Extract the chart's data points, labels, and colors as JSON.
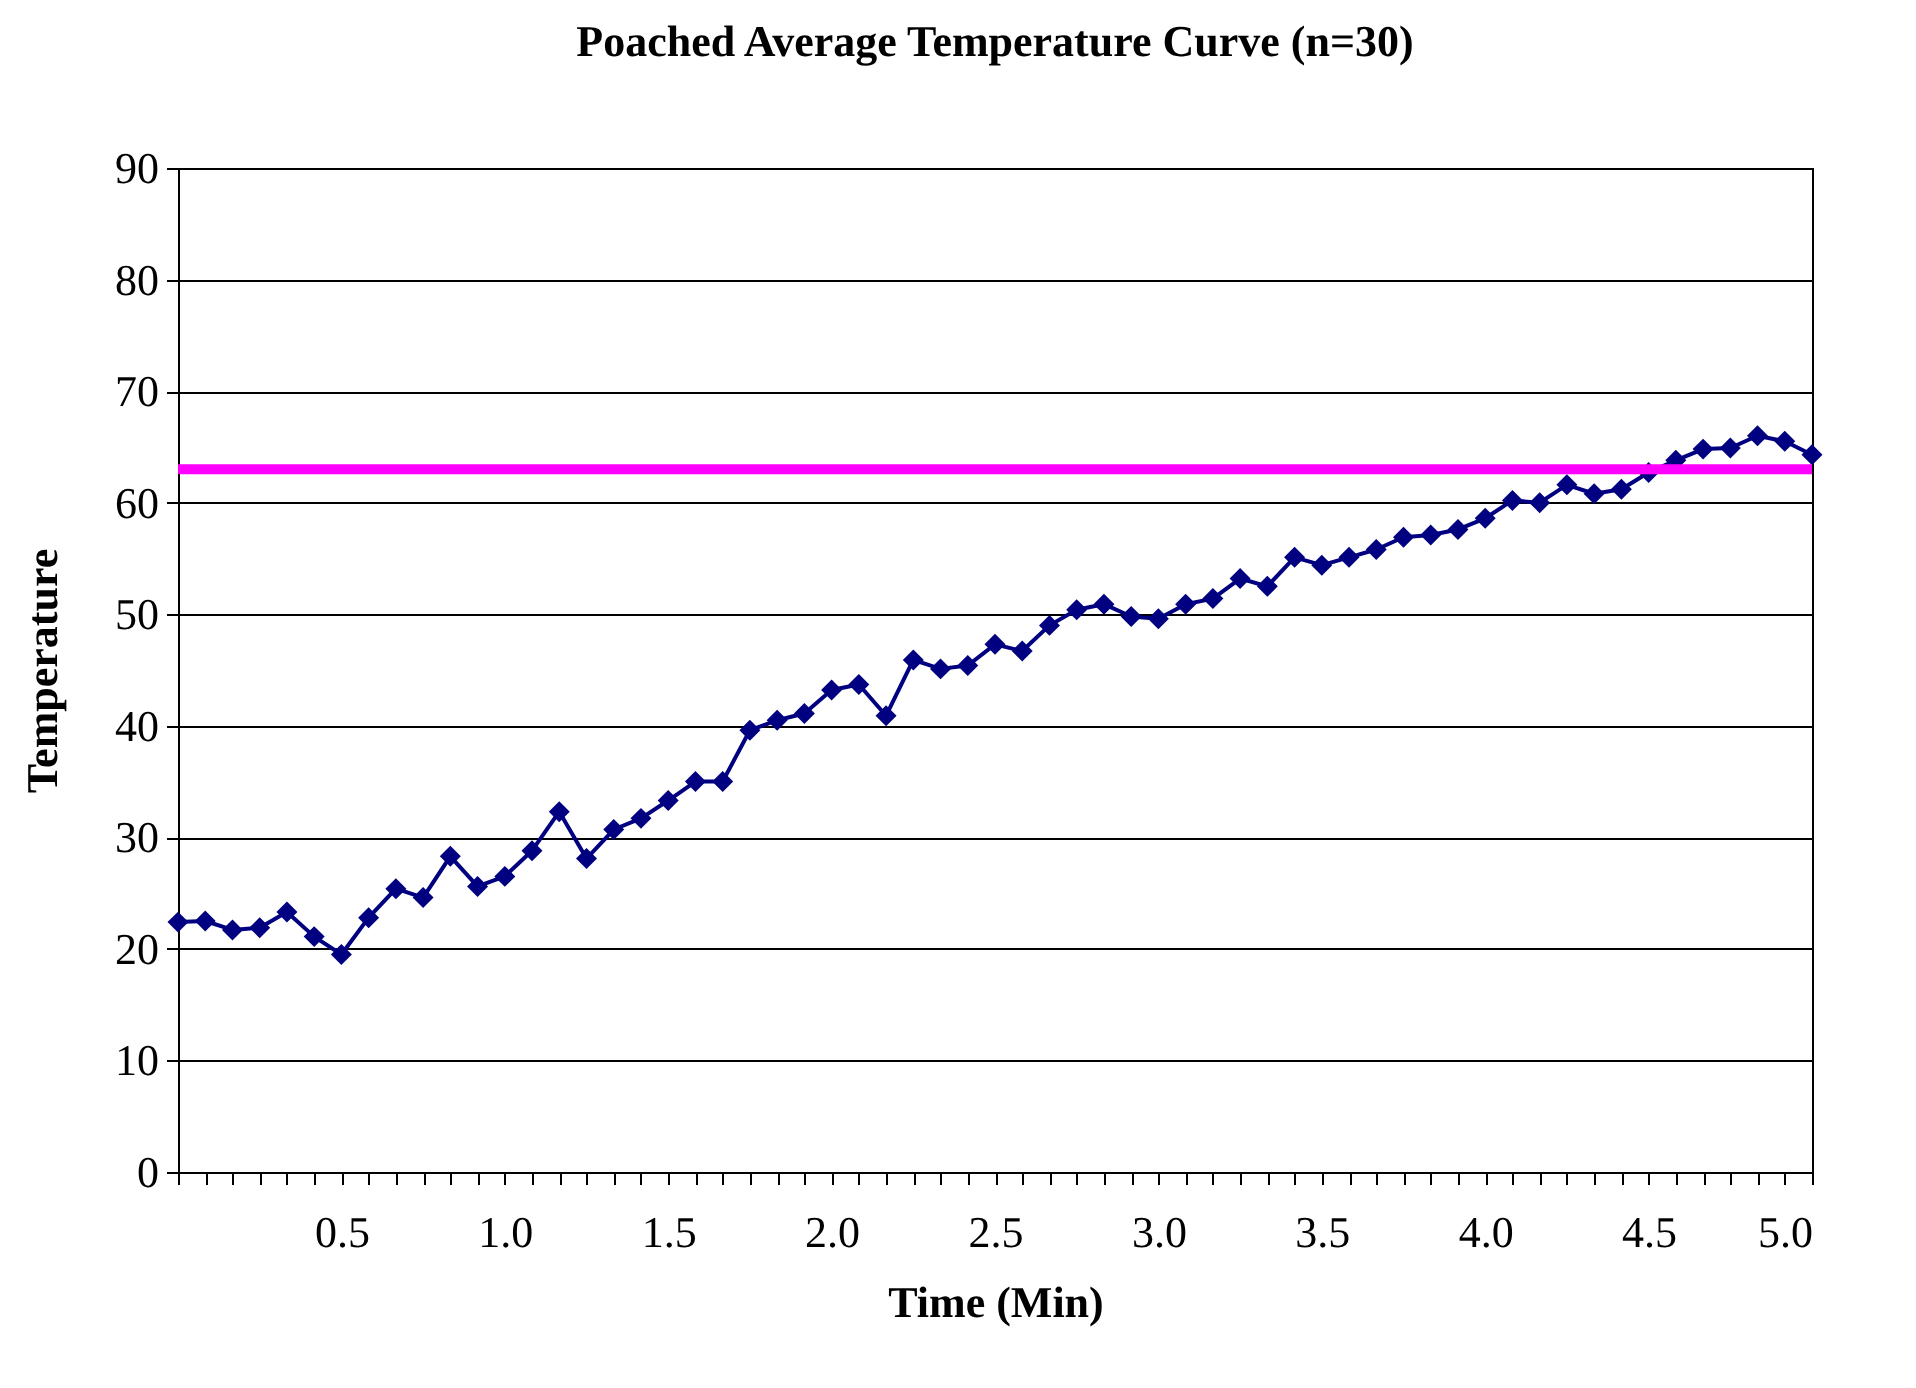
{
  "chart_data": {
    "type": "line",
    "title": "Poached Average Temperature Curve (n=30)",
    "xlabel": "Time (Min)",
    "ylabel": "Temperature",
    "x": [
      0,
      0.0833,
      0.1667,
      0.25,
      0.3333,
      0.4167,
      0.5,
      0.5833,
      0.6667,
      0.75,
      0.8333,
      0.9167,
      1,
      1.0833,
      1.1667,
      1.25,
      1.3333,
      1.4167,
      1.5,
      1.5833,
      1.6667,
      1.75,
      1.8333,
      1.9167,
      2,
      2.0833,
      2.1667,
      2.25,
      2.3333,
      2.4167,
      2.5,
      2.5833,
      2.6667,
      2.75,
      2.8333,
      2.9167,
      3,
      3.0833,
      3.1667,
      3.25,
      3.3333,
      3.4167,
      3.5,
      3.5833,
      3.6667,
      3.75,
      3.8333,
      3.9167,
      4,
      4.0833,
      4.1667,
      4.25,
      4.3333,
      4.4167,
      4.5,
      4.5833,
      4.6667,
      4.75,
      4.8333,
      4.9167,
      5
    ],
    "series": [
      {
        "color": "#000080",
        "values": [
          22.4,
          22.5,
          21.7,
          21.9,
          23.3,
          21.1,
          19.5,
          22.8,
          25.4,
          24.6,
          28.3,
          25.6,
          26.5,
          28.8,
          32.3,
          28.1,
          30.7,
          31.7,
          33.3,
          35.0,
          35.0,
          39.6,
          40.5,
          41.1,
          43.2,
          43.7,
          40.9,
          45.9,
          45.1,
          45.4,
          47.3,
          46.7,
          49.0,
          50.4,
          50.9,
          49.8,
          49.6,
          50.9,
          51.4,
          53.2,
          52.5,
          55.1,
          54.4,
          55.1,
          55.8,
          56.9,
          57.1,
          57.6,
          58.6,
          60.2,
          60.0,
          61.6,
          60.8,
          61.2,
          62.7,
          63.8,
          64.8,
          64.9,
          66.0,
          65.5,
          64.3
        ]
      }
    ],
    "xlim": [
      0,
      5
    ],
    "xticks": [
      {
        "value": 0,
        "label": null
      },
      {
        "value": 0.0833,
        "label": null
      },
      {
        "value": 0.1667,
        "label": null
      },
      {
        "value": 0.25,
        "label": null
      },
      {
        "value": 0.3333,
        "label": null
      },
      {
        "value": 0.4167,
        "label": null
      },
      0.5,
      {
        "value": 0.5833,
        "label": null
      },
      {
        "value": 0.6667,
        "label": null
      },
      {
        "value": 0.75,
        "label": null
      },
      {
        "value": 0.8333,
        "label": null
      },
      {
        "value": 0.9167,
        "label": null
      },
      {
        "value": 1,
        "label": "1.0"
      },
      {
        "value": 1.0833,
        "label": null
      },
      {
        "value": 1.1667,
        "label": null
      },
      {
        "value": 1.25,
        "label": null
      },
      {
        "value": 1.3333,
        "label": null
      },
      {
        "value": 1.4167,
        "label": null
      },
      1.5,
      {
        "value": 1.5833,
        "label": null
      },
      {
        "value": 1.6667,
        "label": null
      },
      {
        "value": 1.75,
        "label": null
      },
      {
        "value": 1.8333,
        "label": null
      },
      {
        "value": 1.9167,
        "label": null
      },
      {
        "value": 2,
        "label": "2.0"
      },
      {
        "value": 2.0833,
        "label": null
      },
      {
        "value": 2.1667,
        "label": null
      },
      {
        "value": 2.25,
        "label": null
      },
      {
        "value": 2.3333,
        "label": null
      },
      {
        "value": 2.4167,
        "label": null
      },
      2.5,
      {
        "value": 2.5833,
        "label": null
      },
      {
        "value": 2.6667,
        "label": null
      },
      {
        "value": 2.75,
        "label": null
      },
      {
        "value": 2.8333,
        "label": null
      },
      {
        "value": 2.9167,
        "label": null
      },
      {
        "value": 3,
        "label": "3.0"
      },
      {
        "value": 3.0833,
        "label": null
      },
      {
        "value": 3.1667,
        "label": null
      },
      {
        "value": 3.25,
        "label": null
      },
      {
        "value": 3.3333,
        "label": null
      },
      {
        "value": 3.4167,
        "label": null
      },
      3.5,
      {
        "value": 3.5833,
        "label": null
      },
      {
        "value": 3.6667,
        "label": null
      },
      {
        "value": 3.75,
        "label": null
      },
      {
        "value": 3.8333,
        "label": null
      },
      {
        "value": 3.9167,
        "label": null
      },
      {
        "value": 4,
        "label": "4.0"
      },
      {
        "value": 4.0833,
        "label": null
      },
      {
        "value": 4.1667,
        "label": null
      },
      {
        "value": 4.25,
        "label": null
      },
      {
        "value": 4.3333,
        "label": null
      },
      {
        "value": 4.4167,
        "label": null
      },
      4.5,
      {
        "value": 4.5833,
        "label": null
      },
      {
        "value": 4.6667,
        "label": null
      },
      {
        "value": 4.75,
        "label": null
      },
      {
        "value": 4.8333,
        "label": null
      },
      {
        "value": 4.9167,
        "label": null
      },
      {
        "value": 5,
        "label": "5.0"
      }
    ],
    "ylim": [
      0,
      90
    ],
    "yticks": [
      0,
      10,
      20,
      30,
      40,
      50,
      60,
      70,
      80,
      90
    ],
    "ref_lines": [
      {
        "axis": "y",
        "value": 63,
        "color": "#ff00ff"
      }
    ],
    "grid": "y",
    "marker": "diamond",
    "line_style": "solid"
  }
}
